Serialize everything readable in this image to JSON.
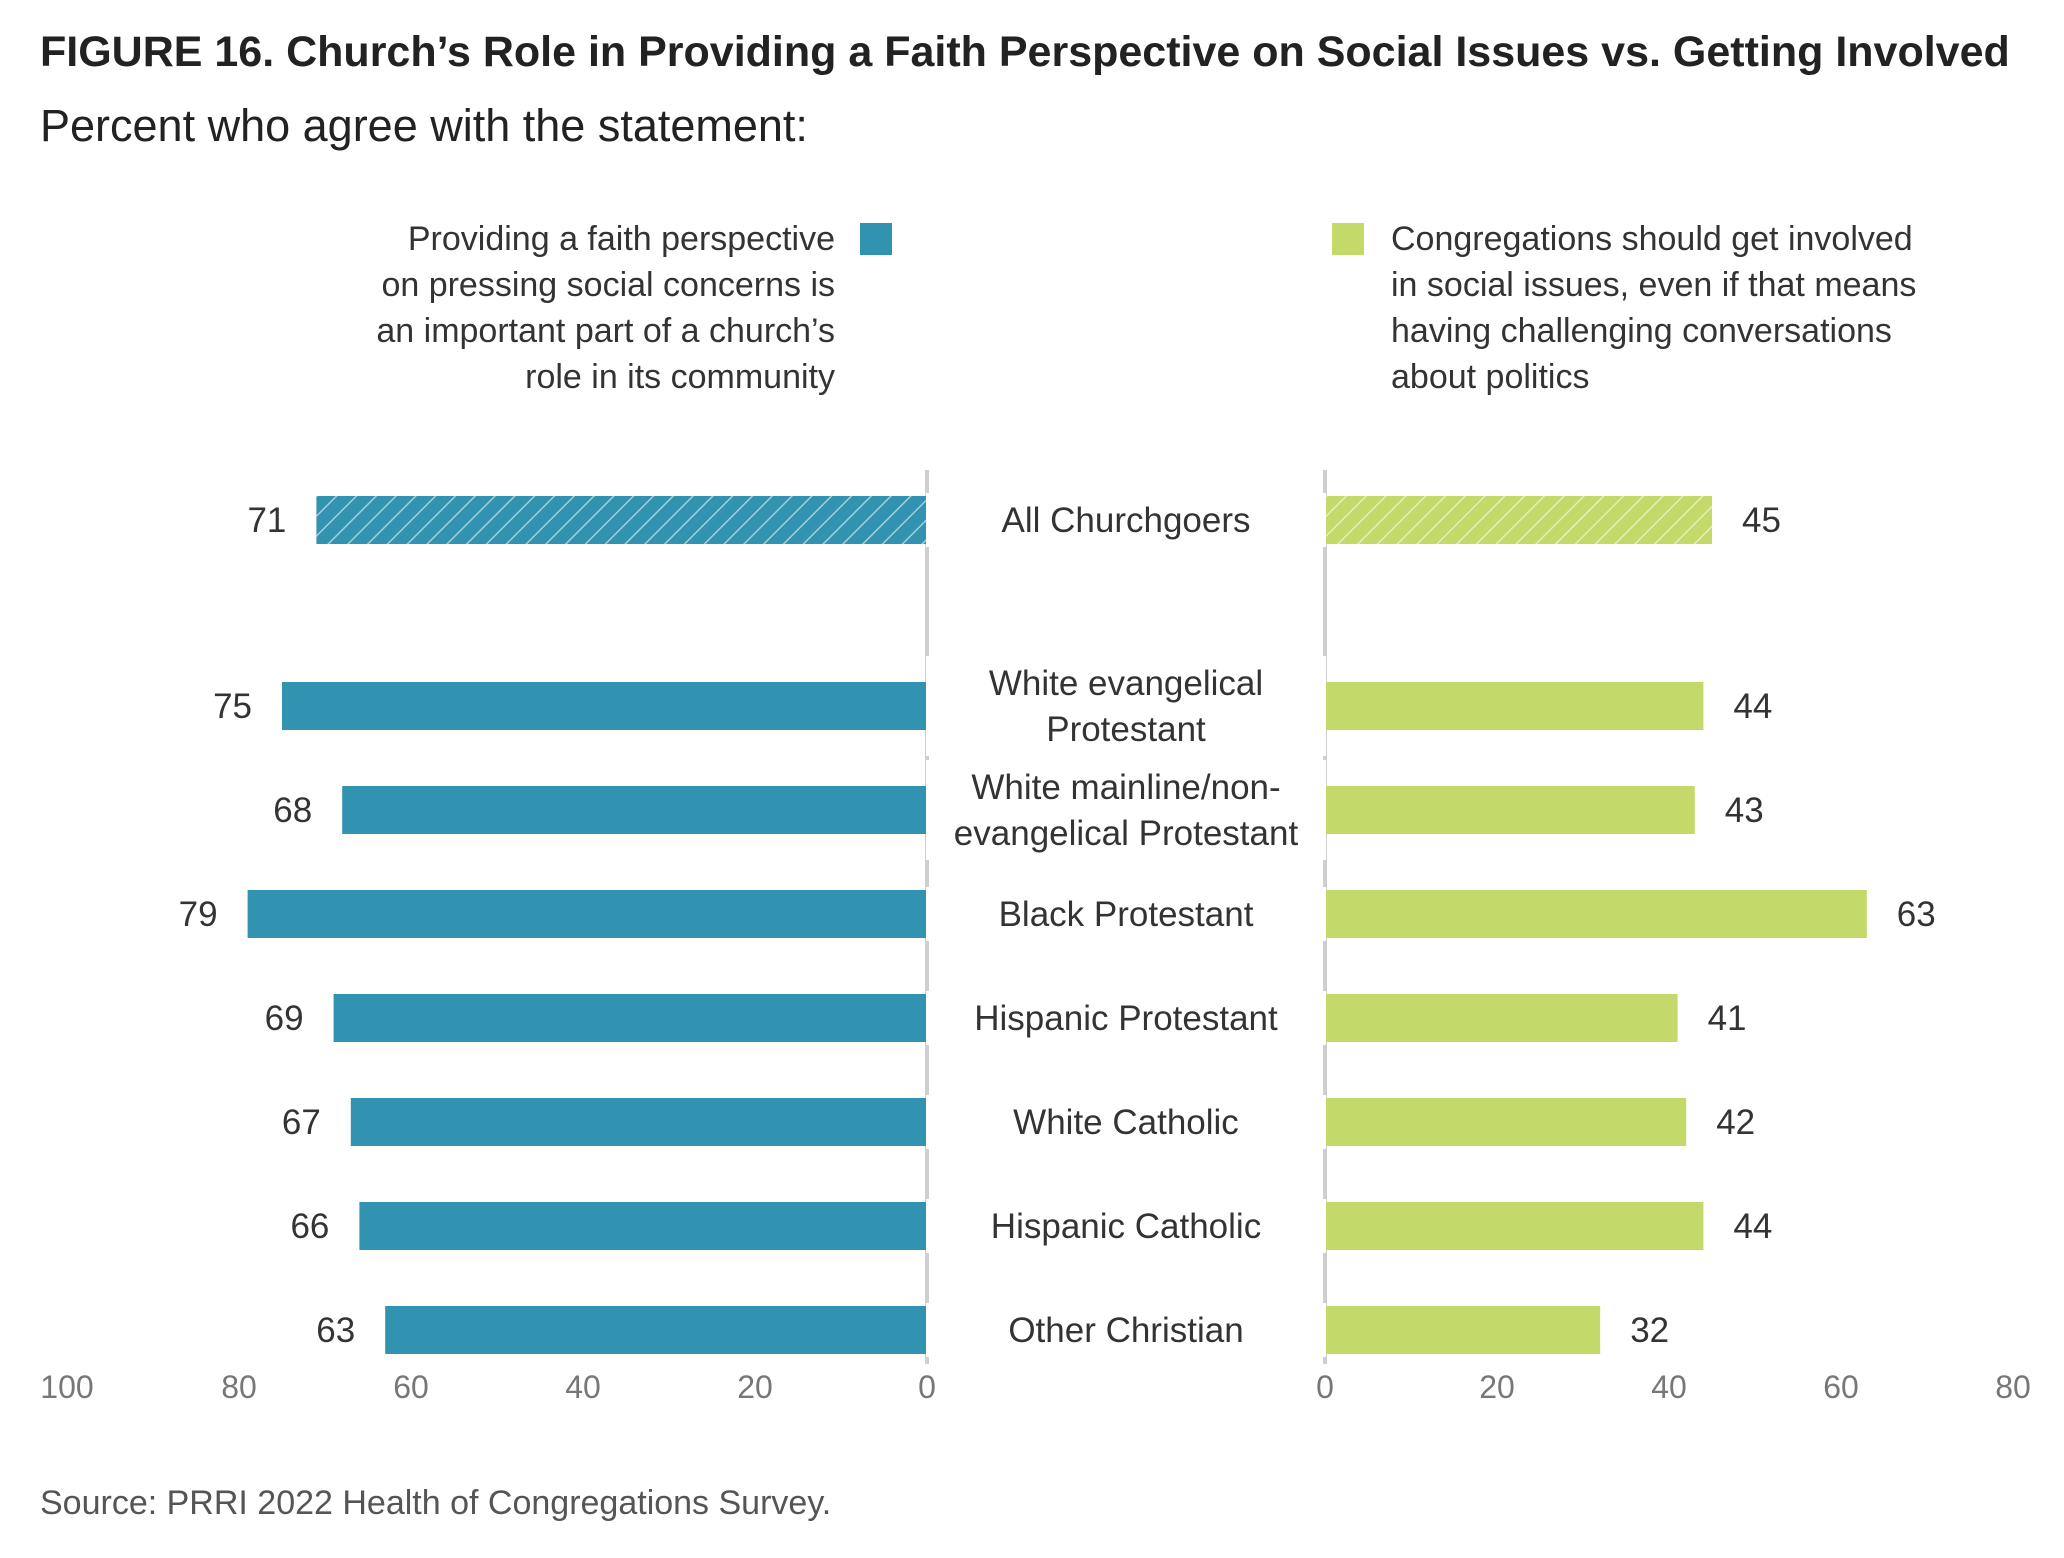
{
  "chart_data": {
    "type": "bar",
    "orientation": "horizontal",
    "layout": "diverging-butterfly",
    "title": "FIGURE 16.  Church’s Role in Providing a Faith Perspective on Social Issues vs. Getting Involved",
    "subtitle": "Percent who agree with the statement:",
    "categories": [
      [
        "All Churchgoers"
      ],
      [
        "White evangelical",
        "Protestant"
      ],
      [
        "White mainline/non-",
        "evangelical Protestant"
      ],
      [
        "Black Protestant"
      ],
      [
        "Hispanic Protestant"
      ],
      [
        "White Catholic"
      ],
      [
        "Hispanic Catholic"
      ],
      [
        "Other Christian"
      ]
    ],
    "series": [
      {
        "name": [
          "Providing a faith perspective",
          "on pressing social concerns is",
          "an important part of a church’s",
          "role in its community"
        ],
        "side": "left",
        "color": "#3193b0",
        "values": [
          71,
          75,
          68,
          79,
          69,
          67,
          66,
          63
        ],
        "xlim": [
          0,
          100
        ],
        "ticks": [
          "100",
          "80",
          "60",
          "40",
          "20",
          "0"
        ],
        "tick_values": [
          100,
          80,
          60,
          40,
          20,
          0
        ]
      },
      {
        "name": [
          "Congregations should get involved",
          "in social issues, even if that means",
          "having challenging conversations",
          "about politics"
        ],
        "side": "right",
        "color": "#c3d96a",
        "values": [
          45,
          44,
          43,
          63,
          41,
          42,
          44,
          32
        ],
        "xlim": [
          0,
          80
        ],
        "ticks": [
          "0",
          "20",
          "40",
          "60",
          "80"
        ],
        "tick_values": [
          0,
          20,
          40,
          60,
          80
        ]
      }
    ],
    "highlight_index": 0,
    "highlight_pattern": "diagonal-hatch",
    "legend": "top",
    "grid": false
  },
  "source": "Source: PRRI 2022 Health of Congregations Survey.",
  "colors": {
    "left": "#3193b0",
    "right": "#c3d96a",
    "axis": "#cfcfcf",
    "tick_label": "#777777"
  }
}
